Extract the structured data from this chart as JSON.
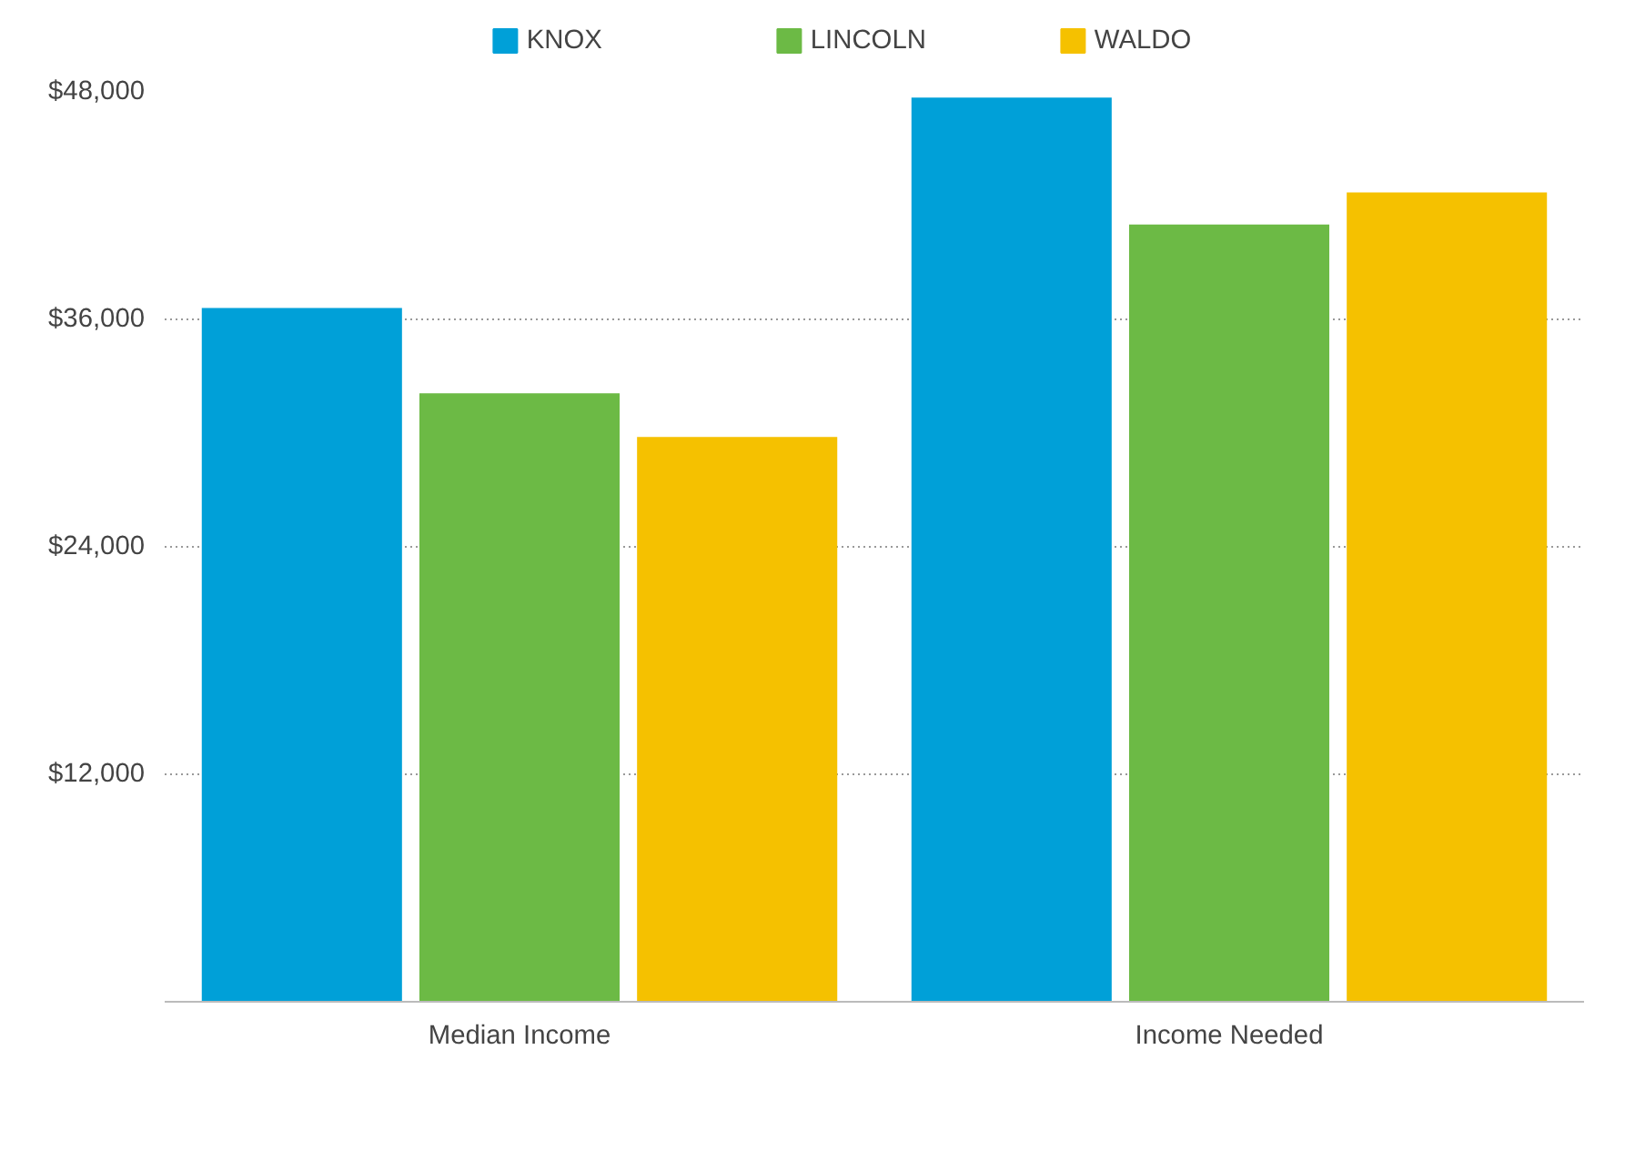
{
  "chart_data": {
    "type": "bar",
    "categories": [
      "Median Income",
      "Income Needed"
    ],
    "series": [
      {
        "name": "KNOX",
        "color": "#00a0d8",
        "values": [
          36600,
          47700
        ]
      },
      {
        "name": "LINCOLN",
        "color": "#6cba45",
        "values": [
          32100,
          41000
        ]
      },
      {
        "name": "WALDO",
        "color": "#f5c100",
        "values": [
          29800,
          42700
        ]
      }
    ],
    "ylim": [
      0,
      48000
    ],
    "yticks": [
      {
        "value": 12000,
        "label": "$12,000"
      },
      {
        "value": 24000,
        "label": "$24,000"
      },
      {
        "value": 36000,
        "label": "$36,000"
      },
      {
        "value": 48000,
        "label": "$48,000"
      }
    ],
    "grid": "y",
    "legend": "top"
  }
}
